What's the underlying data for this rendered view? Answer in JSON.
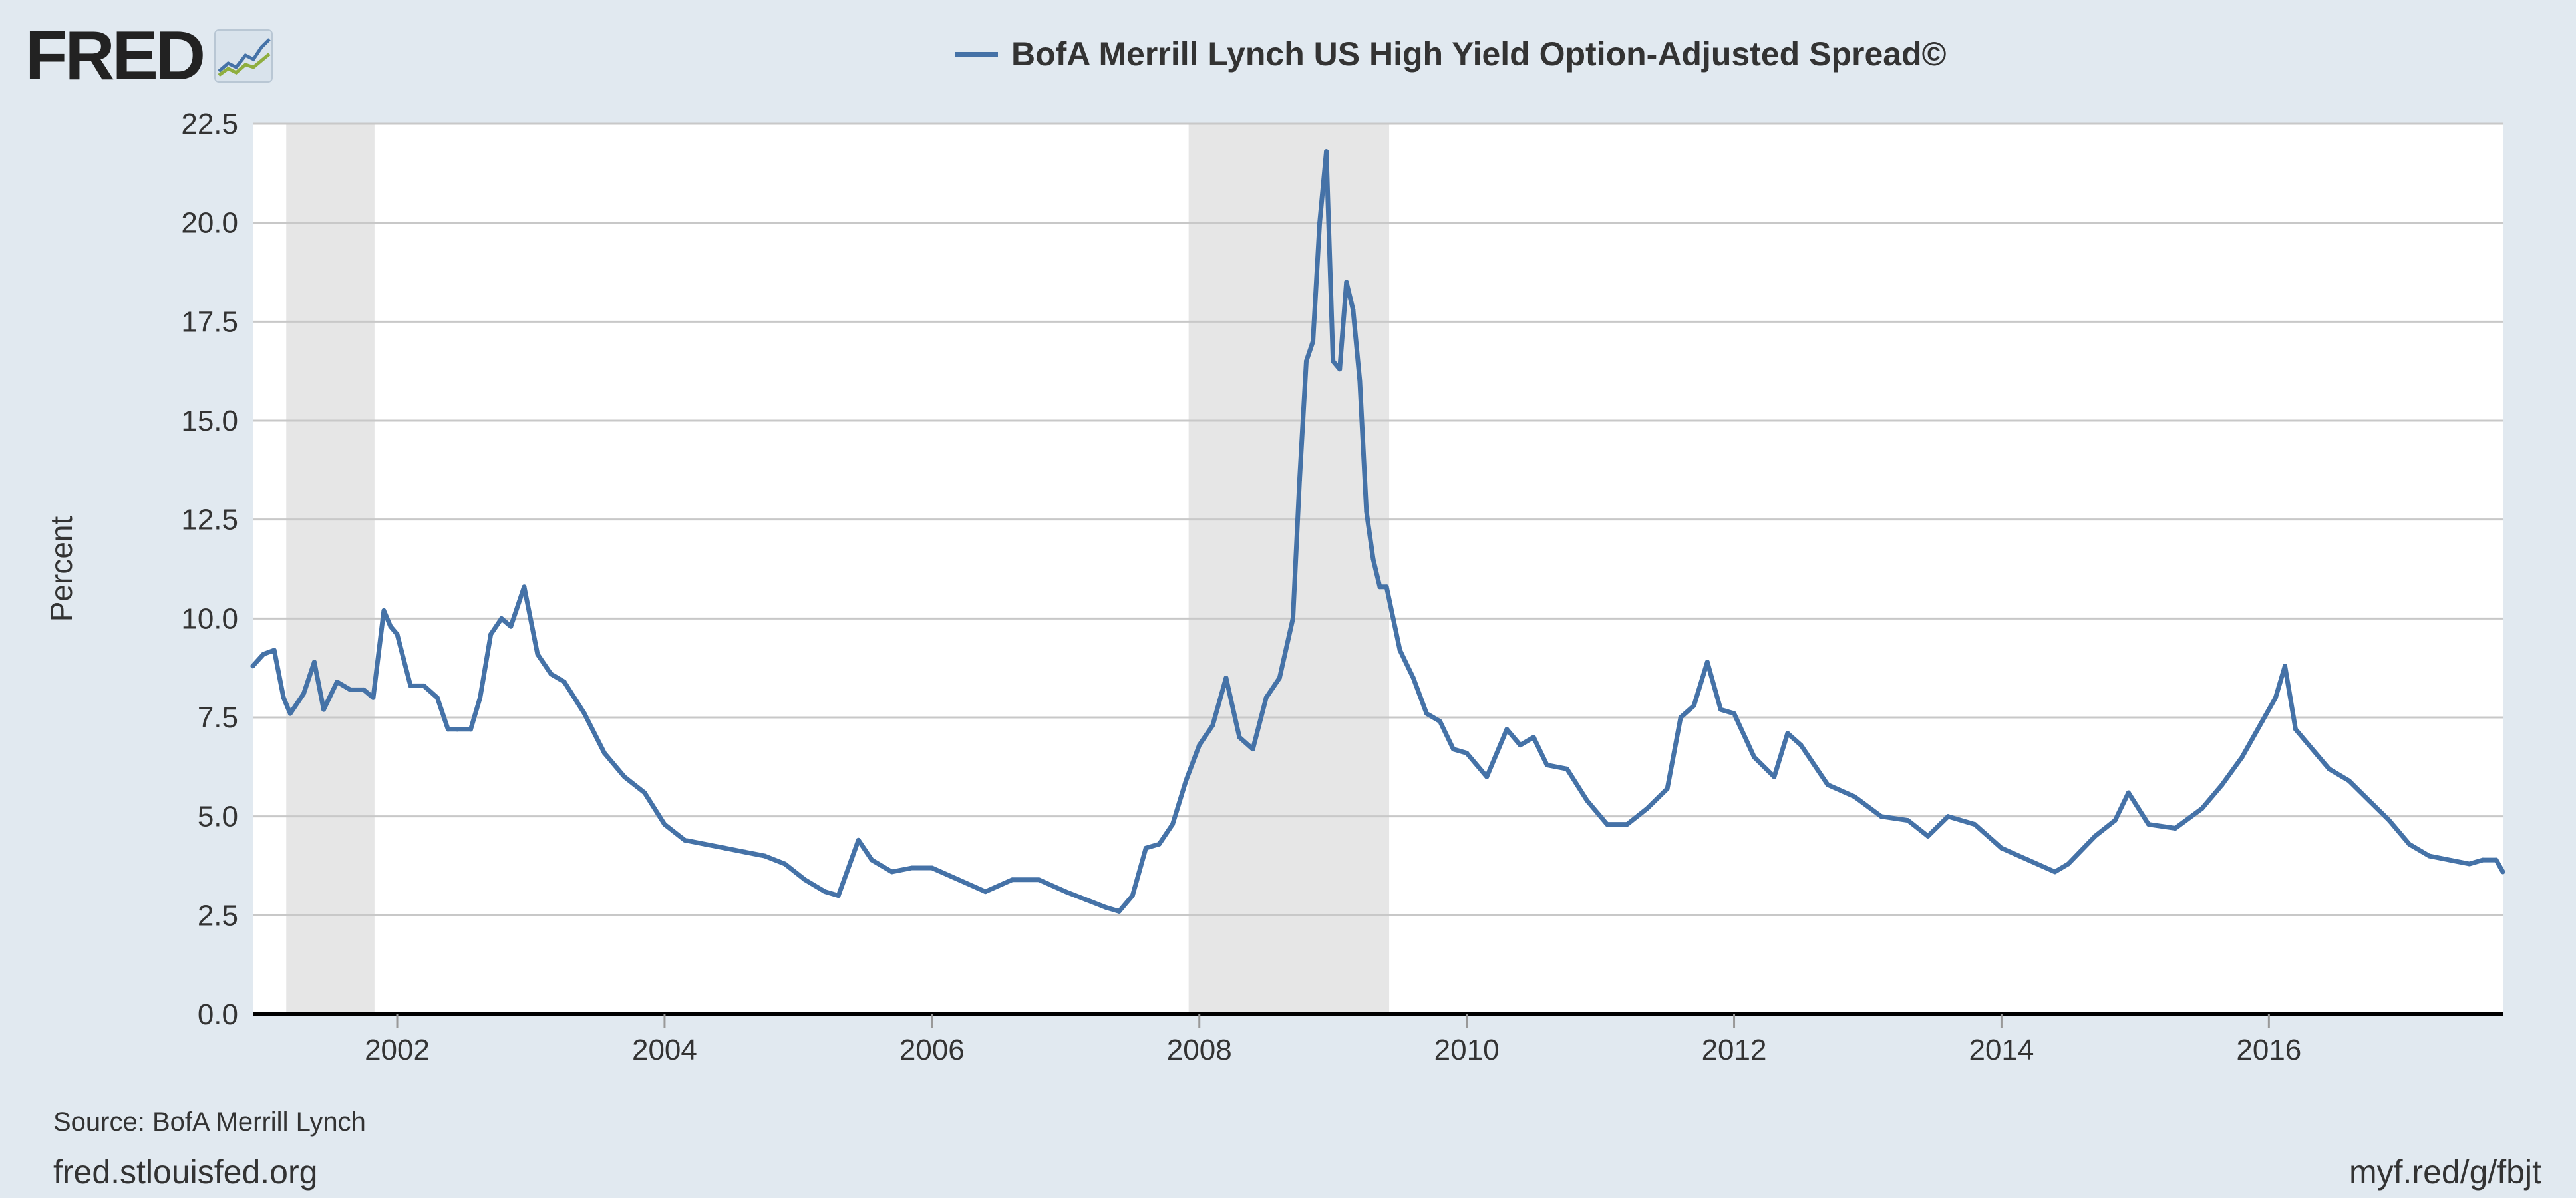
{
  "header": {
    "logo_text": "FRED",
    "logo_icon": "fred-mini-chart-icon"
  },
  "footer": {
    "source": "Source: BofA Merrill Lynch",
    "site": "fred.stlouisfed.org",
    "short_url": "myf.red/g/fbjt"
  },
  "colors": {
    "background": "#e1e9f0",
    "plot_background": "#ffffff",
    "series": "#4572a7",
    "recession": "#e6e6e6",
    "gridline": "#c8c8c8",
    "baseline": "#000000"
  },
  "chart_data": {
    "type": "line",
    "title": "",
    "ylabel": "Percent",
    "xlabel": "",
    "xlim": [
      2000.92,
      2017.75
    ],
    "ylim": [
      0,
      22.5
    ],
    "y_ticks": [
      0.0,
      2.5,
      5.0,
      7.5,
      10.0,
      12.5,
      15.0,
      17.5,
      20.0,
      22.5
    ],
    "y_tick_labels": [
      "0.0",
      "2.5",
      "5.0",
      "7.5",
      "10.0",
      "12.5",
      "15.0",
      "17.5",
      "20.0",
      "22.5"
    ],
    "x_ticks": [
      2002,
      2004,
      2006,
      2008,
      2010,
      2012,
      2014,
      2016
    ],
    "x_tick_labels": [
      "2002",
      "2004",
      "2006",
      "2008",
      "2010",
      "2012",
      "2014",
      "2016"
    ],
    "grid": true,
    "legend_position": "top-center",
    "recessions": [
      [
        2001.17,
        2001.83
      ],
      [
        2007.92,
        2009.42
      ]
    ],
    "series": [
      {
        "name": "BofA Merrill Lynch US High Yield Option-Adjusted Spread©",
        "color": "#4572a7",
        "x": [
          2000.92,
          2001.0,
          2001.08,
          2001.15,
          2001.2,
          2001.3,
          2001.38,
          2001.45,
          2001.55,
          2001.65,
          2001.75,
          2001.82,
          2001.9,
          2001.95,
          2002.0,
          2002.1,
          2002.2,
          2002.3,
          2002.38,
          2002.45,
          2002.55,
          2002.62,
          2002.7,
          2002.78,
          2002.85,
          2002.95,
          2003.05,
          2003.15,
          2003.25,
          2003.4,
          2003.55,
          2003.7,
          2003.85,
          2004.0,
          2004.15,
          2004.3,
          2004.45,
          2004.6,
          2004.75,
          2004.9,
          2005.05,
          2005.2,
          2005.3,
          2005.45,
          2005.55,
          2005.7,
          2005.85,
          2006.0,
          2006.2,
          2006.4,
          2006.6,
          2006.8,
          2007.0,
          2007.15,
          2007.3,
          2007.4,
          2007.5,
          2007.6,
          2007.7,
          2007.8,
          2007.9,
          2008.0,
          2008.1,
          2008.2,
          2008.3,
          2008.4,
          2008.5,
          2008.6,
          2008.7,
          2008.75,
          2008.8,
          2008.85,
          2008.9,
          2008.95,
          2009.0,
          2009.05,
          2009.1,
          2009.15,
          2009.2,
          2009.25,
          2009.3,
          2009.35,
          2009.4,
          2009.5,
          2009.6,
          2009.7,
          2009.8,
          2009.9,
          2010.0,
          2010.15,
          2010.3,
          2010.4,
          2010.5,
          2010.6,
          2010.75,
          2010.9,
          2011.05,
          2011.2,
          2011.35,
          2011.5,
          2011.6,
          2011.7,
          2011.8,
          2011.9,
          2012.0,
          2012.15,
          2012.3,
          2012.4,
          2012.5,
          2012.7,
          2012.9,
          2013.1,
          2013.3,
          2013.45,
          2013.6,
          2013.8,
          2014.0,
          2014.2,
          2014.4,
          2014.5,
          2014.7,
          2014.85,
          2014.95,
          2015.1,
          2015.3,
          2015.5,
          2015.65,
          2015.8,
          2015.95,
          2016.05,
          2016.12,
          2016.2,
          2016.3,
          2016.45,
          2016.6,
          2016.75,
          2016.9,
          2017.05,
          2017.2,
          2017.35,
          2017.5,
          2017.6,
          2017.7,
          2017.75
        ],
        "y": [
          8.8,
          9.1,
          9.2,
          8.0,
          7.6,
          8.1,
          8.9,
          7.7,
          8.4,
          8.2,
          8.2,
          8.0,
          10.2,
          9.8,
          9.6,
          8.3,
          8.3,
          8.0,
          7.2,
          7.2,
          7.2,
          8.0,
          9.6,
          10.0,
          9.8,
          10.8,
          9.1,
          8.6,
          8.4,
          7.6,
          6.6,
          6.0,
          5.6,
          4.8,
          4.4,
          4.3,
          4.2,
          4.1,
          4.0,
          3.8,
          3.4,
          3.1,
          3.0,
          4.4,
          3.9,
          3.6,
          3.7,
          3.7,
          3.4,
          3.1,
          3.4,
          3.4,
          3.1,
          2.9,
          2.7,
          2.6,
          3.0,
          4.2,
          4.3,
          4.8,
          5.9,
          6.8,
          7.3,
          8.5,
          7.0,
          6.7,
          8.0,
          8.5,
          10.0,
          13.5,
          16.5,
          17.0,
          20.0,
          21.8,
          16.5,
          16.3,
          18.5,
          17.8,
          16.0,
          12.7,
          11.5,
          10.8,
          10.8,
          9.2,
          8.5,
          7.6,
          7.4,
          6.7,
          6.6,
          6.0,
          7.2,
          6.8,
          7.0,
          6.3,
          6.2,
          5.4,
          4.8,
          4.8,
          5.2,
          5.7,
          7.5,
          7.8,
          8.9,
          7.7,
          7.6,
          6.5,
          6.0,
          7.1,
          6.8,
          5.8,
          5.5,
          5.0,
          4.9,
          4.5,
          5.0,
          4.8,
          4.2,
          3.9,
          3.6,
          3.8,
          4.5,
          4.9,
          5.6,
          4.8,
          4.7,
          5.2,
          5.8,
          6.5,
          7.4,
          8.0,
          8.8,
          7.2,
          6.8,
          6.2,
          5.9,
          5.4,
          4.9,
          4.3,
          4.0,
          3.9,
          3.8,
          3.9,
          3.9,
          3.6
        ]
      }
    ]
  }
}
